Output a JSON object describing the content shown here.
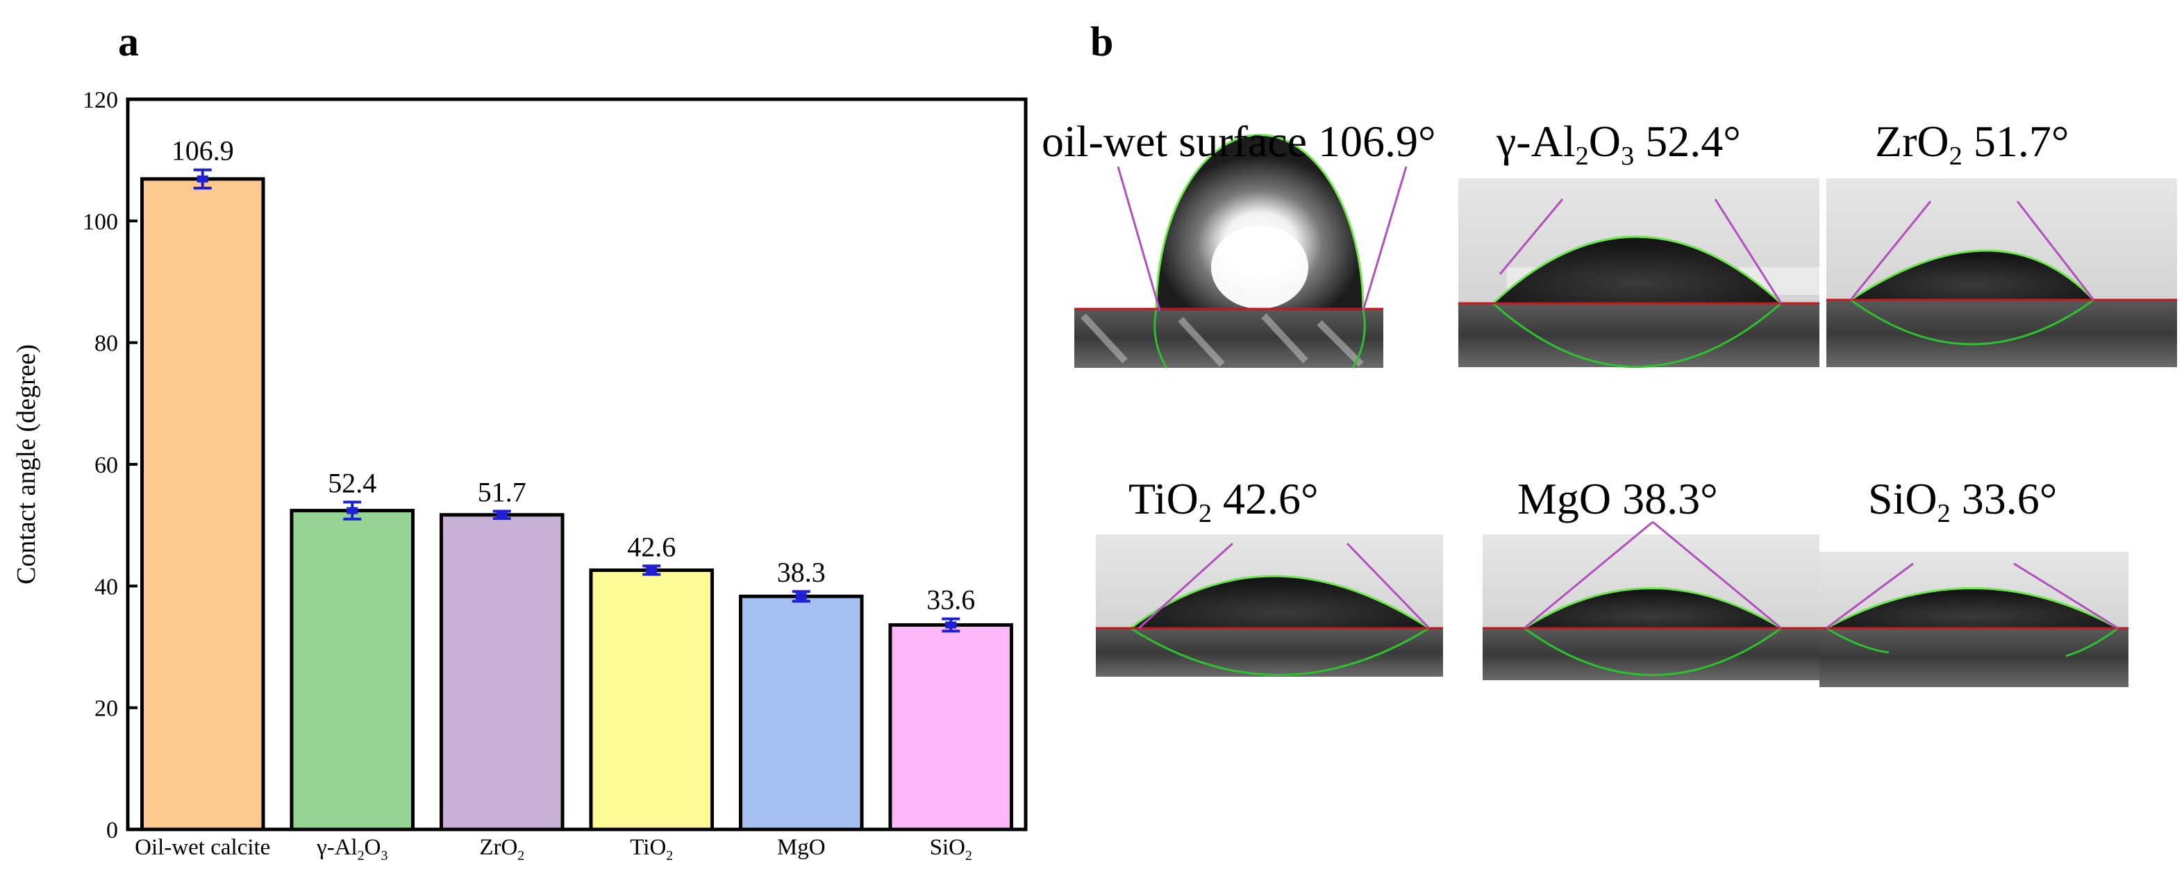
{
  "panels": {
    "a": "a",
    "b": "b"
  },
  "chart_data": {
    "type": "bar",
    "categories": [
      "Oil-wet calcite",
      "γ-Al₂O₃",
      "ZrO₂",
      "TiO₂",
      "MgO",
      "SiO₂"
    ],
    "category_parts": [
      {
        "base": "Oil-wet calcite"
      },
      {
        "base": "γ-Al",
        "sub1": "2",
        "mid": "O",
        "sub2": "3"
      },
      {
        "base": "ZrO",
        "sub1": "2"
      },
      {
        "base": "TiO",
        "sub1": "2"
      },
      {
        "base": "MgO"
      },
      {
        "base": "SiO",
        "sub1": "2"
      }
    ],
    "values": [
      106.9,
      52.4,
      51.7,
      42.6,
      38.3,
      33.6
    ],
    "value_labels": [
      "106.9",
      "52.4",
      "51.7",
      "42.6",
      "38.3",
      "33.6"
    ],
    "errors": [
      1.5,
      1.4,
      0.6,
      0.7,
      0.8,
      1.0
    ],
    "colors": [
      "#fcc98f",
      "#96d494",
      "#c7b2d6",
      "#fdfa98",
      "#a6c0f1",
      "#fcb8fa"
    ],
    "ylabel": "Contact angle (degree)",
    "xlabel": "",
    "ylim": [
      0,
      120
    ],
    "yticks": [
      0,
      20,
      40,
      60,
      80,
      100,
      120
    ],
    "error_bar_color": "#1f1fd6"
  },
  "photos": [
    {
      "base": "oil-wet surface 106.9°",
      "sub1": "",
      "mid": "",
      "sub2": "",
      "tail": "",
      "angle": 106.9
    },
    {
      "base": "γ-Al",
      "sub1": "2",
      "mid": "O",
      "sub2": "3",
      "tail": " 52.4°",
      "angle": 52.4
    },
    {
      "base": "ZrO",
      "sub1": "2",
      "mid": "",
      "sub2": "",
      "tail": " 51.7°",
      "angle": 51.7
    },
    {
      "base": "TiO",
      "sub1": "2",
      "mid": "",
      "sub2": "",
      "tail": " 42.6°",
      "angle": 42.6
    },
    {
      "base": "MgO 38.3°",
      "sub1": "",
      "mid": "",
      "sub2": "",
      "tail": "",
      "angle": 38.3
    },
    {
      "base": "SiO",
      "sub1": "2",
      "mid": "",
      "sub2": "",
      "tail": " 33.6°",
      "angle": 33.6
    }
  ]
}
